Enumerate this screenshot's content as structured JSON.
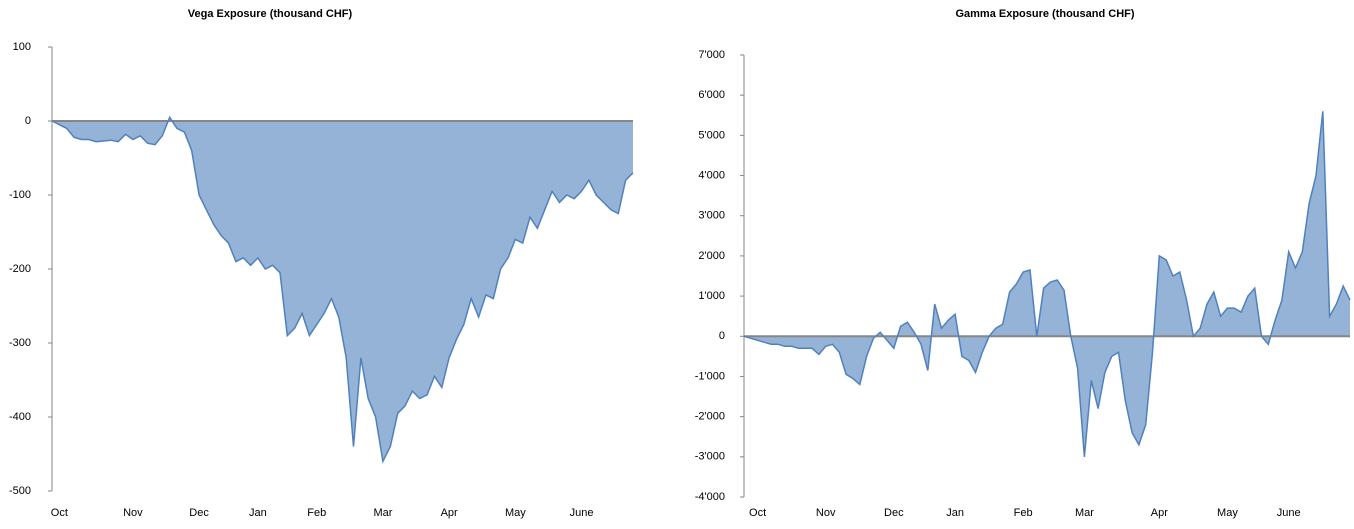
{
  "chart_data": [
    {
      "type": "area",
      "title": "Vega Exposure (thousand CHF)",
      "categories": [
        null,
        "Oct",
        null,
        null,
        null,
        null,
        null,
        null,
        null,
        null,
        null,
        "Nov",
        null,
        null,
        null,
        null,
        null,
        null,
        null,
        null,
        "Dec",
        null,
        null,
        null,
        null,
        null,
        null,
        null,
        "Jan",
        null,
        null,
        null,
        null,
        null,
        null,
        null,
        "Feb",
        null,
        null,
        null,
        null,
        null,
        null,
        null,
        null,
        "Mar",
        null,
        null,
        null,
        null,
        null,
        null,
        null,
        null,
        "Apr",
        null,
        null,
        null,
        null,
        null,
        null,
        null,
        null,
        "May",
        null,
        null,
        null,
        null,
        null,
        null,
        null,
        null,
        "June",
        null,
        null,
        null,
        null,
        null,
        null,
        null
      ],
      "values": [
        0,
        -5,
        -10,
        -22,
        -25,
        -25,
        -28,
        -27,
        -26,
        -28,
        -18,
        -25,
        -20,
        -30,
        -32,
        -20,
        5,
        -10,
        -15,
        -40,
        -100,
        -120,
        -140,
        -155,
        -165,
        -190,
        -185,
        -195,
        -185,
        -200,
        -195,
        -205,
        -290,
        -280,
        -260,
        -290,
        -275,
        -260,
        -240,
        -265,
        -320,
        -440,
        -320,
        -375,
        -400,
        -460,
        -440,
        -395,
        -385,
        -365,
        -375,
        -370,
        -345,
        -360,
        -320,
        -295,
        -275,
        -240,
        -265,
        -235,
        -240,
        -200,
        -185,
        -160,
        -165,
        -130,
        -145,
        -120,
        -95,
        -110,
        -100,
        -105,
        -95,
        -80,
        -100,
        -110,
        -120,
        -125,
        -80,
        -70
      ],
      "color": "#95b3d7",
      "line_color": "#4f81bd",
      "ylim": [
        -500,
        100
      ],
      "yticks": [
        100,
        0,
        -100,
        -200,
        -300,
        -400,
        -500
      ]
    },
    {
      "type": "area",
      "title": "Gamma Exposure  (thousand CHF)",
      "categories": [
        null,
        null,
        "Oct",
        null,
        null,
        null,
        null,
        null,
        null,
        null,
        null,
        null,
        "Nov",
        null,
        null,
        null,
        null,
        null,
        null,
        null,
        null,
        null,
        "Dec",
        null,
        null,
        null,
        null,
        null,
        null,
        null,
        null,
        "Jan",
        null,
        null,
        null,
        null,
        null,
        null,
        null,
        null,
        null,
        "Feb",
        null,
        null,
        null,
        null,
        null,
        null,
        null,
        null,
        "Mar",
        null,
        null,
        null,
        null,
        null,
        null,
        null,
        null,
        null,
        null,
        "Apr",
        null,
        null,
        null,
        null,
        null,
        null,
        null,
        null,
        null,
        "May",
        null,
        null,
        null,
        null,
        null,
        null,
        null,
        null,
        "June",
        null,
        null,
        null,
        null,
        null,
        null,
        null,
        null,
        null
      ],
      "values": [
        0,
        -50,
        -100,
        -150,
        -200,
        -200,
        -250,
        -250,
        -300,
        -300,
        -300,
        -450,
        -250,
        -200,
        -400,
        -950,
        -1050,
        -1200,
        -500,
        -50,
        100,
        -100,
        -300,
        250,
        350,
        100,
        -200,
        -850,
        800,
        200,
        400,
        550,
        -500,
        -600,
        -900,
        -400,
        0,
        200,
        300,
        1100,
        1300,
        1600,
        1650,
        0,
        1200,
        1350,
        1400,
        1150,
        0,
        -800,
        -3000,
        -1100,
        -1800,
        -900,
        -500,
        -400,
        -1600,
        -2400,
        -2700,
        -2200,
        -400,
        2000,
        1900,
        1500,
        1600,
        900,
        0,
        200,
        800,
        1100,
        500,
        700,
        700,
        600,
        1000,
        1200,
        0,
        -200,
        400,
        900,
        2100,
        1700,
        2100,
        3300,
        4000,
        5600,
        500,
        800,
        1250,
        900
      ],
      "color": "#95b3d7",
      "line_color": "#4f81bd",
      "ylim": [
        -4000,
        7000
      ],
      "yticks": [
        {
          "value": 7000,
          "label": "7'000"
        },
        {
          "value": 6000,
          "label": "6'000"
        },
        {
          "value": 5000,
          "label": "5'000"
        },
        {
          "value": 4000,
          "label": "4'000"
        },
        {
          "value": 3000,
          "label": "3'000"
        },
        {
          "value": 2000,
          "label": "2'000"
        },
        {
          "value": 1000,
          "label": "1'000"
        },
        0,
        {
          "value": -1000,
          "label": "-1'000"
        },
        {
          "value": -2000,
          "label": "-2'000"
        },
        {
          "value": -3000,
          "label": "-3'000"
        },
        {
          "value": -4000,
          "label": "-4'000"
        }
      ]
    }
  ]
}
